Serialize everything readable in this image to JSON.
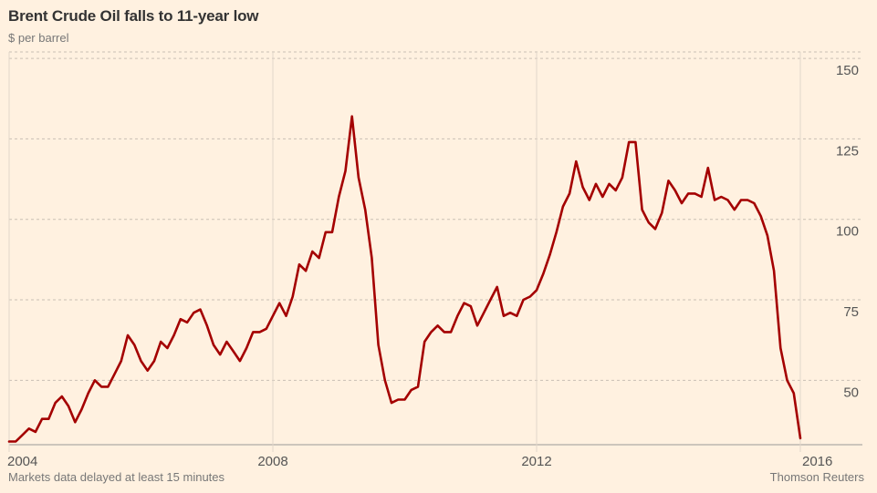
{
  "header": {
    "title": "Brent Crude Oil falls to 11-year low",
    "subtitle": "$ per barrel"
  },
  "footer": {
    "source_note": "Markets data delayed at least 15 minutes",
    "credit": "Thomson Reuters"
  },
  "colors": {
    "background": "#fff1e0",
    "line": "#a40000",
    "grid": "#c9bfb4"
  },
  "chart_data": {
    "type": "line",
    "title": "Brent Crude Oil falls to 11-year low",
    "subtitle": "$ per barrel",
    "xlabel": "",
    "ylabel": "",
    "xlim": [
      2004.0,
      2016.0
    ],
    "ylim": [
      30,
      152
    ],
    "x_ticks": [
      2004,
      2008,
      2012,
      2016
    ],
    "x_tick_labels": [
      "2004",
      "2008",
      "2012",
      "2016"
    ],
    "y_ticks": [
      50,
      75,
      100,
      125,
      150
    ],
    "y_tick_labels": [
      "50",
      "75",
      "100",
      "125",
      "150"
    ],
    "grid": true,
    "series": [
      {
        "name": "",
        "x": [
          2004.0,
          2004.1,
          2004.2,
          2004.3,
          2004.4,
          2004.5,
          2004.6,
          2004.7,
          2004.8,
          2004.9,
          2005.0,
          2005.1,
          2005.2,
          2005.3,
          2005.4,
          2005.5,
          2005.6,
          2005.7,
          2005.8,
          2005.9,
          2006.0,
          2006.1,
          2006.2,
          2006.3,
          2006.4,
          2006.5,
          2006.6,
          2006.7,
          2006.8,
          2006.9,
          2007.0,
          2007.1,
          2007.2,
          2007.3,
          2007.4,
          2007.5,
          2007.6,
          2007.7,
          2007.8,
          2007.9,
          2008.0,
          2008.1,
          2008.2,
          2008.3,
          2008.4,
          2008.5,
          2008.6,
          2008.7,
          2008.8,
          2008.9,
          2009.0,
          2009.1,
          2009.2,
          2009.3,
          2009.4,
          2009.5,
          2009.6,
          2009.7,
          2009.8,
          2009.9,
          2010.0,
          2010.1,
          2010.2,
          2010.3,
          2010.4,
          2010.5,
          2010.6,
          2010.7,
          2010.8,
          2010.9,
          2011.0,
          2011.1,
          2011.2,
          2011.3,
          2011.4,
          2011.5,
          2011.6,
          2011.7,
          2011.8,
          2011.9,
          2012.0,
          2012.1,
          2012.2,
          2012.3,
          2012.4,
          2012.5,
          2012.6,
          2012.7,
          2012.8,
          2012.9,
          2013.0,
          2013.1,
          2013.2,
          2013.3,
          2013.4,
          2013.5,
          2013.6,
          2013.7,
          2013.8,
          2013.9,
          2014.0,
          2014.1,
          2014.2,
          2014.3,
          2014.4,
          2014.5,
          2014.6,
          2014.7,
          2014.8,
          2014.9,
          2015.0,
          2015.1,
          2015.2,
          2015.3,
          2015.4,
          2015.5,
          2015.6,
          2015.7,
          2015.8,
          2015.9,
          2016.0
        ],
        "values": [
          31,
          31,
          33,
          35,
          34,
          38,
          38,
          43,
          45,
          42,
          37,
          41,
          46,
          50,
          48,
          48,
          52,
          56,
          64,
          61,
          56,
          53,
          56,
          62,
          60,
          64,
          69,
          68,
          71,
          72,
          67,
          61,
          58,
          62,
          59,
          56,
          60,
          65,
          65,
          66,
          70,
          74,
          70,
          76,
          86,
          84,
          90,
          88,
          96,
          96,
          107,
          115,
          132,
          113,
          103,
          88,
          61,
          50,
          43,
          44,
          44,
          47,
          48,
          62,
          65,
          67,
          65,
          65,
          70,
          74,
          73,
          67,
          71,
          75,
          79,
          70,
          71,
          70,
          75,
          76,
          78,
          83,
          89,
          96,
          104,
          108,
          118,
          110,
          106,
          111,
          107,
          111,
          109,
          113,
          124,
          124,
          103,
          99,
          97,
          102,
          112,
          109,
          105,
          108,
          108,
          107,
          116,
          106,
          107,
          106,
          103,
          106,
          106,
          105,
          101,
          95,
          84,
          60,
          50,
          46,
          32
        ]
      }
    ]
  }
}
